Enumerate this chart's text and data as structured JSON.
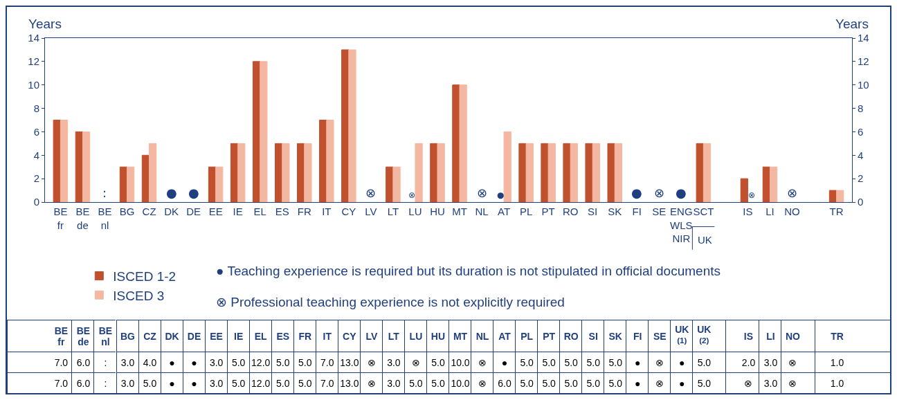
{
  "chart_data": {
    "type": "bar",
    "ylabel": "Years",
    "y2label": "Years",
    "categories": [
      "BE fr",
      "BE de",
      "BE nl",
      "BG",
      "CZ",
      "DK",
      "DE",
      "EE",
      "IE",
      "EL",
      "ES",
      "FR",
      "IT",
      "CY",
      "LV",
      "LT",
      "LU",
      "HU",
      "MT",
      "NL",
      "AT",
      "PL",
      "PT",
      "RO",
      "SI",
      "SK",
      "FI",
      "SE",
      "ENG WLS NIR",
      "SCT",
      null,
      "IS",
      "LI",
      "NO",
      null,
      "TR"
    ],
    "series": [
      {
        "name": "ISCED 1-2",
        "color": "#c0502e",
        "values": [
          7,
          6,
          null,
          3,
          4,
          null,
          null,
          3,
          5,
          12,
          5,
          5,
          7,
          13,
          null,
          3,
          null,
          5,
          10,
          null,
          null,
          5,
          5,
          5,
          5,
          5,
          null,
          null,
          null,
          5,
          null,
          2,
          3,
          null,
          null,
          1
        ],
        "value_labels": [
          "7.0",
          "6.0",
          ":",
          "3.0",
          "4.0",
          "●",
          "●",
          "3.0",
          "5.0",
          "12.0",
          "5.0",
          "5.0",
          "7.0",
          "13.0",
          "⊗",
          "3.0",
          "⊗",
          "5.0",
          "10.0",
          "⊗",
          "●",
          "5.0",
          "5.0",
          "5.0",
          "5.0",
          "5.0",
          "●",
          "⊗",
          "●",
          "5.0",
          null,
          "2.0",
          "3.0",
          "⊗",
          null,
          "1.0"
        ]
      },
      {
        "name": "ISCED 3",
        "color": "#f4b8a2",
        "values": [
          7,
          6,
          null,
          3,
          5,
          null,
          null,
          3,
          5,
          12,
          5,
          5,
          7,
          13,
          null,
          3,
          5,
          5,
          10,
          null,
          6,
          5,
          5,
          5,
          5,
          5,
          null,
          null,
          null,
          5,
          null,
          null,
          3,
          null,
          null,
          1
        ],
        "value_labels": [
          "7.0",
          "6.0",
          ":",
          "3.0",
          "5.0",
          "●",
          "●",
          "3.0",
          "5.0",
          "12.0",
          "5.0",
          "5.0",
          "7.0",
          "13.0",
          "⊗",
          "3.0",
          "5.0",
          "5.0",
          "10.0",
          "⊗",
          "6.0",
          "5.0",
          "5.0",
          "5.0",
          "5.0",
          "5.0",
          "●",
          "⊗",
          "●",
          "5.0",
          null,
          "⊗",
          "3.0",
          "⊗",
          null,
          "1.0"
        ]
      }
    ],
    "ylim": [
      0,
      14
    ],
    "yticks": [
      0,
      2,
      4,
      6,
      8,
      10,
      12,
      14
    ],
    "y2lim": [
      0,
      14
    ],
    "y2ticks": [
      0,
      2,
      4,
      6,
      8,
      10,
      12,
      14
    ],
    "grid": false,
    "legend": "bottom left",
    "annotations": [
      "● Teaching experience is required but its duration is not stipulated in official documents",
      "⊗ Professional teaching experience is not explicitly required",
      "UK",
      "UK$^{(1)}$",
      "UK$^{(2)}$"
    ]
  }
}
